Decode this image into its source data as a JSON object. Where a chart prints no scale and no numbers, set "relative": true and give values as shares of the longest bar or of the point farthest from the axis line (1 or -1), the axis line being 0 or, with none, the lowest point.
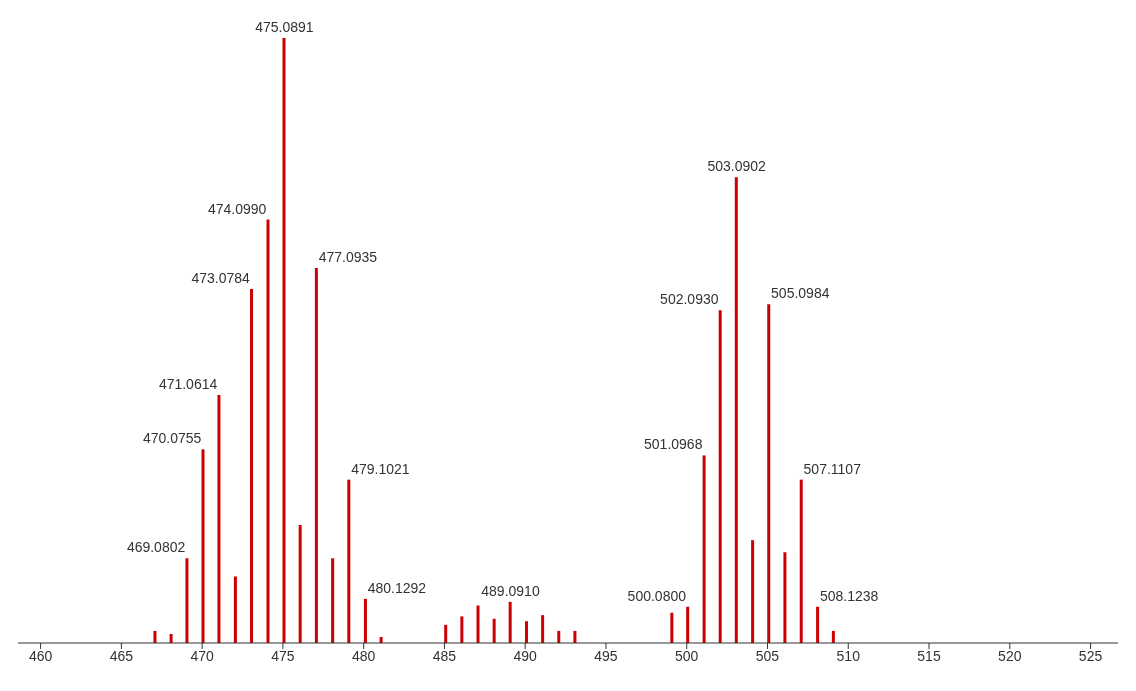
{
  "chart_data": {
    "type": "bar",
    "relative": true,
    "color": "#cc0000",
    "x": [
      467.1,
      468.1,
      469.0802,
      470.0755,
      471.0614,
      472.08,
      473.0784,
      474.099,
      475.0891,
      476.09,
      477.0935,
      478.1,
      479.1021,
      480.1292,
      481.1,
      485.1,
      486.1,
      487.1,
      488.1,
      489.091,
      490.1,
      491.1,
      492.1,
      493.1,
      499.1,
      500.08,
      501.0968,
      502.093,
      503.0902,
      504.1,
      505.0984,
      506.1,
      507.1107,
      508.1238,
      509.1
    ],
    "values": [
      0.02,
      0.015,
      0.14,
      0.32,
      0.41,
      0.11,
      0.585,
      0.7,
      1,
      0.195,
      0.62,
      0.14,
      0.27,
      0.073,
      0.01,
      0.03,
      0.044,
      0.062,
      0.04,
      0.068,
      0.036,
      0.046,
      0.02,
      0.02,
      0.05,
      0.06,
      0.31,
      0.55,
      0.77,
      0.17,
      0.56,
      0.15,
      0.27,
      0.06,
      0.02
    ],
    "annotations": [
      {
        "text": "469.0802",
        "x": 469.0802,
        "y": 0.14
      },
      {
        "text": "470.0755",
        "x": 470.0755,
        "y": 0.32
      },
      {
        "text": "471.0614",
        "x": 471.0614,
        "y": 0.41
      },
      {
        "text": "473.0784",
        "x": 473.0784,
        "y": 0.585
      },
      {
        "text": "474.0990",
        "x": 474.099,
        "y": 0.7
      },
      {
        "text": "475.0891",
        "x": 475.0891,
        "y": 1
      },
      {
        "text": "477.0935",
        "x": 477.0935,
        "y": 0.62
      },
      {
        "text": "479.1021",
        "x": 479.1021,
        "y": 0.27
      },
      {
        "text": "480.1292",
        "x": 480.1292,
        "y": 0.073
      },
      {
        "text": "489.0910",
        "x": 489.091,
        "y": 0.068
      },
      {
        "text": "500.0800",
        "x": 500.08,
        "y": 0.06
      },
      {
        "text": "501.0968",
        "x": 501.0968,
        "y": 0.31
      },
      {
        "text": "502.0930",
        "x": 502.093,
        "y": 0.55
      },
      {
        "text": "503.0902",
        "x": 503.0902,
        "y": 0.77
      },
      {
        "text": "505.0984",
        "x": 505.0984,
        "y": 0.56
      },
      {
        "text": "507.1107",
        "x": 507.1107,
        "y": 0.27
      },
      {
        "text": "508.1238",
        "x": 508.1238,
        "y": 0.06
      }
    ],
    "xlim": [
      458.6,
      526.7
    ],
    "xticks": [
      460,
      465,
      470,
      475,
      480,
      485,
      490,
      495,
      500,
      505,
      510,
      515,
      520,
      525
    ]
  }
}
